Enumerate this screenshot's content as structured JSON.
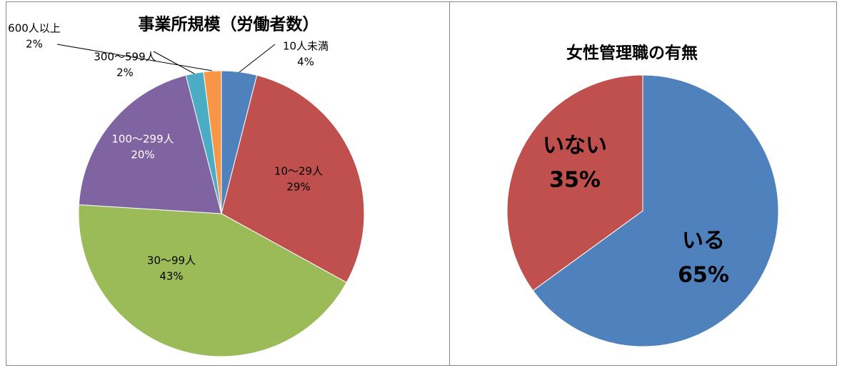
{
  "chart_data": [
    {
      "type": "pie",
      "title": "事業所規模（労働者数）",
      "categories": [
        "10人未満",
        "10〜29人",
        "30〜99人",
        "100〜299人",
        "300〜599人",
        "600人以上"
      ],
      "values": [
        4,
        29,
        43,
        20,
        2,
        2
      ],
      "value_labels": [
        "4%",
        "29%",
        "43%",
        "20%",
        "2%",
        "2%"
      ],
      "colors": [
        "#4f81bd",
        "#c0504d",
        "#9bbb59",
        "#8064a2",
        "#4bacc6",
        "#f79646"
      ]
    },
    {
      "type": "pie",
      "title": "女性管理職の有無",
      "categories": [
        "いる",
        "いない"
      ],
      "values": [
        65,
        35
      ],
      "value_labels": [
        "65%",
        "35%"
      ],
      "colors": [
        "#4f81bd",
        "#c0504d"
      ]
    }
  ]
}
